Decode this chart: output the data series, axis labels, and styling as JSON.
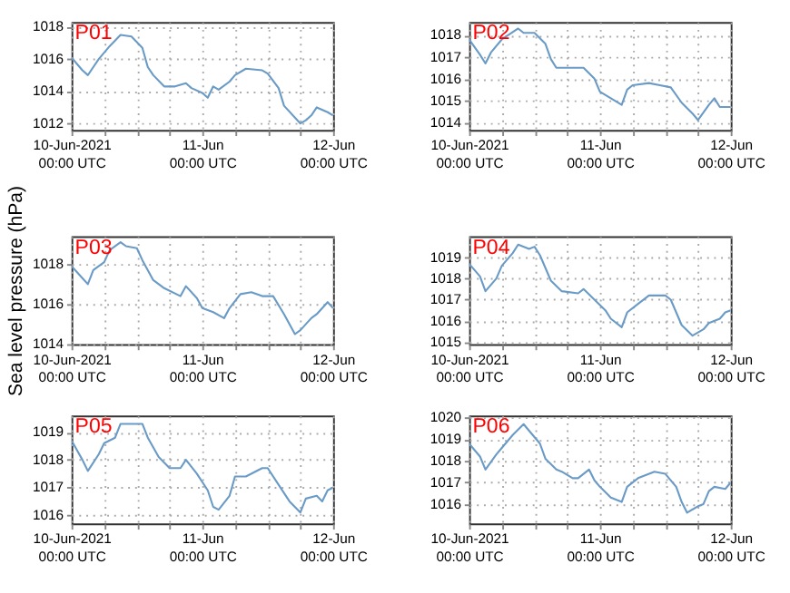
{
  "chart_data": [
    {
      "type": "line",
      "annotations": [
        "P01"
      ],
      "color": "#6a9bc7",
      "grid": true,
      "xlim": [
        "2021-06-10T00:00",
        "2021-06-12T00:00"
      ],
      "ylim": [
        1011.6,
        1018.3
      ],
      "yticks": [
        1012,
        1014,
        1016,
        1018
      ],
      "xticks": [
        {
          "value": "2021-06-10T00:00",
          "label": "10-Jun-2021\n00:00 UTC"
        },
        {
          "value": "2021-06-10T06:00",
          "label": null
        },
        {
          "value": "2021-06-10T12:00",
          "label": null
        },
        {
          "value": "2021-06-10T18:00",
          "label": null
        },
        {
          "value": "2021-06-11T00:00",
          "label": "11-Jun\n00:00 UTC"
        },
        {
          "value": "2021-06-11T06:00",
          "label": null
        },
        {
          "value": "2021-06-11T12:00",
          "label": null
        },
        {
          "value": "2021-06-11T18:00",
          "label": null
        },
        {
          "value": "2021-06-12T00:00",
          "label": "12-Jun\n00:00 UTC"
        }
      ],
      "x": [
        "2021-06-10T00:00",
        "2021-06-10T01:00",
        "2021-06-10T02:00",
        "2021-06-10T03:00",
        "2021-06-10T04:00",
        "2021-06-10T05:00",
        "2021-06-10T07:00",
        "2021-06-10T09:00",
        "2021-06-10T11:00",
        "2021-06-10T13:00",
        "2021-06-10T14:00",
        "2021-06-10T15:00",
        "2021-06-10T17:00",
        "2021-06-10T19:00",
        "2021-06-10T21:00",
        "2021-06-10T22:00",
        "2021-06-11T00:00",
        "2021-06-11T01:00",
        "2021-06-11T02:00",
        "2021-06-11T03:00",
        "2021-06-11T05:00",
        "2021-06-11T06:00",
        "2021-06-11T08:00",
        "2021-06-11T11:00",
        "2021-06-11T12:00",
        "2021-06-11T14:00",
        "2021-06-11T15:00",
        "2021-06-11T18:00",
        "2021-06-11T19:00",
        "2021-06-11T20:00",
        "2021-06-11T21:00",
        "2021-06-11T23:00",
        "2021-06-12T00:00"
      ],
      "values": [
        1016.1,
        1015.7,
        1015.3,
        1015.0,
        1015.5,
        1016.0,
        1016.8,
        1017.5,
        1017.4,
        1016.7,
        1015.5,
        1015.0,
        1014.3,
        1014.3,
        1014.5,
        1014.2,
        1013.9,
        1013.6,
        1014.3,
        1014.1,
        1014.6,
        1015.0,
        1015.4,
        1015.3,
        1015.1,
        1014.2,
        1013.1,
        1012.0,
        1012.2,
        1012.5,
        1013.0,
        1012.7,
        1012.5
      ]
    },
    {
      "type": "line",
      "annotations": [
        "P02"
      ],
      "color": "#6a9bc7",
      "grid": true,
      "xlim": [
        "2021-06-10T00:00",
        "2021-06-12T00:00"
      ],
      "ylim": [
        1013.65,
        1018.6
      ],
      "yticks": [
        1014,
        1015,
        1016,
        1017,
        1018
      ],
      "xticks": [
        {
          "value": "2021-06-10T00:00",
          "label": "10-Jun-2021\n00:00 UTC"
        },
        {
          "value": "2021-06-10T06:00",
          "label": null
        },
        {
          "value": "2021-06-10T12:00",
          "label": null
        },
        {
          "value": "2021-06-10T18:00",
          "label": null
        },
        {
          "value": "2021-06-11T00:00",
          "label": "11-Jun\n00:00 UTC"
        },
        {
          "value": "2021-06-11T06:00",
          "label": null
        },
        {
          "value": "2021-06-11T12:00",
          "label": null
        },
        {
          "value": "2021-06-11T18:00",
          "label": null
        },
        {
          "value": "2021-06-12T00:00",
          "label": "12-Jun\n00:00 UTC"
        }
      ],
      "x": [
        "2021-06-10T00:00",
        "2021-06-10T02:00",
        "2021-06-10T03:00",
        "2021-06-10T04:00",
        "2021-06-10T06:00",
        "2021-06-10T09:00",
        "2021-06-10T10:00",
        "2021-06-10T12:00",
        "2021-06-10T14:00",
        "2021-06-10T15:00",
        "2021-06-10T16:00",
        "2021-06-10T20:00",
        "2021-06-10T21:00",
        "2021-06-10T23:00",
        "2021-06-11T00:00",
        "2021-06-11T02:00",
        "2021-06-11T04:00",
        "2021-06-11T05:00",
        "2021-06-11T06:00",
        "2021-06-11T09:00",
        "2021-06-11T11:00",
        "2021-06-11T13:00",
        "2021-06-11T15:00",
        "2021-06-11T17:00",
        "2021-06-11T18:00",
        "2021-06-11T20:00",
        "2021-06-11T21:00",
        "2021-06-11T22:00",
        "2021-06-12T00:00"
      ],
      "values": [
        1017.8,
        1017.1,
        1016.7,
        1017.2,
        1017.8,
        1018.3,
        1018.1,
        1018.1,
        1017.6,
        1016.9,
        1016.5,
        1016.5,
        1016.5,
        1016.0,
        1015.4,
        1015.1,
        1014.8,
        1015.5,
        1015.7,
        1015.8,
        1015.7,
        1015.6,
        1014.9,
        1014.4,
        1014.1,
        1014.8,
        1015.1,
        1014.7,
        1014.7
      ]
    },
    {
      "type": "line",
      "annotations": [
        "P03"
      ],
      "ylabel": "Sea level pressure (hPa)",
      "color": "#6a9bc7",
      "grid": true,
      "xlim": [
        "2021-06-10T00:00",
        "2021-06-12T00:00"
      ],
      "ylim": [
        1014,
        1019.4
      ],
      "yticks": [
        1014,
        1016,
        1018
      ],
      "xticks": [
        {
          "value": "2021-06-10T00:00",
          "label": "10-Jun-2021\n00:00 UTC"
        },
        {
          "value": "2021-06-10T06:00",
          "label": null
        },
        {
          "value": "2021-06-10T12:00",
          "label": null
        },
        {
          "value": "2021-06-10T18:00",
          "label": null
        },
        {
          "value": "2021-06-11T00:00",
          "label": "11-Jun\n00:00 UTC"
        },
        {
          "value": "2021-06-11T06:00",
          "label": null
        },
        {
          "value": "2021-06-11T12:00",
          "label": null
        },
        {
          "value": "2021-06-11T18:00",
          "label": null
        },
        {
          "value": "2021-06-12T00:00",
          "label": "12-Jun\n00:00 UTC"
        }
      ],
      "x": [
        "2021-06-10T00:00",
        "2021-06-10T02:00",
        "2021-06-10T03:00",
        "2021-06-10T04:00",
        "2021-06-10T06:00",
        "2021-06-10T07:00",
        "2021-06-10T09:00",
        "2021-06-10T10:00",
        "2021-06-10T12:00",
        "2021-06-10T13:00",
        "2021-06-10T15:00",
        "2021-06-10T17:00",
        "2021-06-10T20:00",
        "2021-06-10T21:00",
        "2021-06-10T23:00",
        "2021-06-11T00:00",
        "2021-06-11T02:00",
        "2021-06-11T04:00",
        "2021-06-11T05:00",
        "2021-06-11T07:00",
        "2021-06-11T09:00",
        "2021-06-11T11:00",
        "2021-06-11T13:00",
        "2021-06-11T15:00",
        "2021-06-11T17:00",
        "2021-06-11T18:00",
        "2021-06-11T20:00",
        "2021-06-11T21:00",
        "2021-06-11T23:00",
        "2021-06-12T00:00"
      ],
      "values": [
        1017.9,
        1017.3,
        1017.0,
        1017.7,
        1018.1,
        1018.7,
        1019.1,
        1018.9,
        1018.8,
        1018.2,
        1017.2,
        1016.8,
        1016.4,
        1016.9,
        1016.3,
        1015.8,
        1015.6,
        1015.3,
        1015.8,
        1016.5,
        1016.6,
        1016.4,
        1016.4,
        1015.5,
        1014.5,
        1014.7,
        1015.3,
        1015.5,
        1016.1,
        1015.8
      ]
    },
    {
      "type": "line",
      "annotations": [
        "P04"
      ],
      "color": "#6a9bc7",
      "grid": true,
      "xlim": [
        "2021-06-10T00:00",
        "2021-06-12T00:00"
      ],
      "ylim": [
        1014.9,
        1020
      ],
      "yticks": [
        1015,
        1016,
        1017,
        1018,
        1019
      ],
      "xticks": [
        {
          "value": "2021-06-10T00:00",
          "label": "10-Jun-2021\n00:00 UTC"
        },
        {
          "value": "2021-06-10T06:00",
          "label": null
        },
        {
          "value": "2021-06-10T12:00",
          "label": null
        },
        {
          "value": "2021-06-10T18:00",
          "label": null
        },
        {
          "value": "2021-06-11T00:00",
          "label": "11-Jun\n00:00 UTC"
        },
        {
          "value": "2021-06-11T06:00",
          "label": null
        },
        {
          "value": "2021-06-11T12:00",
          "label": null
        },
        {
          "value": "2021-06-11T18:00",
          "label": null
        },
        {
          "value": "2021-06-12T00:00",
          "label": "12-Jun\n00:00 UTC"
        }
      ],
      "x": [
        "2021-06-10T00:00",
        "2021-06-10T02:00",
        "2021-06-10T03:00",
        "2021-06-10T05:00",
        "2021-06-10T06:00",
        "2021-06-10T08:00",
        "2021-06-10T09:00",
        "2021-06-10T11:00",
        "2021-06-10T12:00",
        "2021-06-10T13:00",
        "2021-06-10T15:00",
        "2021-06-10T17:00",
        "2021-06-10T20:00",
        "2021-06-10T21:00",
        "2021-06-10T23:00",
        "2021-06-11T01:00",
        "2021-06-11T02:00",
        "2021-06-11T04:00",
        "2021-06-11T05:00",
        "2021-06-11T07:00",
        "2021-06-11T09:00",
        "2021-06-11T12:00",
        "2021-06-11T13:00",
        "2021-06-11T15:00",
        "2021-06-11T17:00",
        "2021-06-11T19:00",
        "2021-06-11T20:00",
        "2021-06-11T22:00",
        "2021-06-11T23:00",
        "2021-06-12T00:00"
      ],
      "values": [
        1018.7,
        1018.1,
        1017.4,
        1018.0,
        1018.6,
        1019.2,
        1019.6,
        1019.4,
        1019.5,
        1019.1,
        1017.9,
        1017.4,
        1017.3,
        1017.5,
        1017.0,
        1016.5,
        1016.1,
        1015.7,
        1016.4,
        1016.8,
        1017.2,
        1017.2,
        1017.0,
        1015.8,
        1015.3,
        1015.6,
        1015.9,
        1016.1,
        1016.4,
        1016.5
      ]
    },
    {
      "type": "line",
      "annotations": [
        "P05"
      ],
      "color": "#6a9bc7",
      "grid": true,
      "xlim": [
        "2021-06-10T00:00",
        "2021-06-12T00:00"
      ],
      "ylim": [
        1015.7,
        1019.6
      ],
      "yticks": [
        1016,
        1017,
        1018,
        1019
      ],
      "xticks": [
        {
          "value": "2021-06-10T00:00",
          "label": "10-Jun-2021\n00:00 UTC"
        },
        {
          "value": "2021-06-10T06:00",
          "label": null
        },
        {
          "value": "2021-06-10T12:00",
          "label": null
        },
        {
          "value": "2021-06-10T18:00",
          "label": null
        },
        {
          "value": "2021-06-11T00:00",
          "label": "11-Jun\n00:00 UTC"
        },
        {
          "value": "2021-06-11T06:00",
          "label": null
        },
        {
          "value": "2021-06-11T12:00",
          "label": null
        },
        {
          "value": "2021-06-11T18:00",
          "label": null
        },
        {
          "value": "2021-06-12T00:00",
          "label": "12-Jun\n00:00 UTC"
        }
      ],
      "x": [
        "2021-06-10T00:00",
        "2021-06-10T02:00",
        "2021-06-10T03:00",
        "2021-06-10T05:00",
        "2021-06-10T06:00",
        "2021-06-10T08:00",
        "2021-06-10T09:00",
        "2021-06-10T11:00",
        "2021-06-10T13:00",
        "2021-06-10T14:00",
        "2021-06-10T16:00",
        "2021-06-10T18:00",
        "2021-06-10T20:00",
        "2021-06-10T21:00",
        "2021-06-10T23:00",
        "2021-06-11T01:00",
        "2021-06-11T02:00",
        "2021-06-11T03:00",
        "2021-06-11T05:00",
        "2021-06-11T06:00",
        "2021-06-11T08:00",
        "2021-06-11T11:00",
        "2021-06-11T12:00",
        "2021-06-11T14:00",
        "2021-06-11T16:00",
        "2021-06-11T18:00",
        "2021-06-11T19:00",
        "2021-06-11T21:00",
        "2021-06-11T22:00",
        "2021-06-11T23:00",
        "2021-06-12T00:00"
      ],
      "values": [
        1018.7,
        1018.0,
        1017.6,
        1018.2,
        1018.6,
        1018.8,
        1019.3,
        1019.3,
        1019.3,
        1018.8,
        1018.1,
        1017.7,
        1017.7,
        1018.0,
        1017.5,
        1016.9,
        1016.3,
        1016.2,
        1016.7,
        1017.4,
        1017.4,
        1017.7,
        1017.7,
        1017.1,
        1016.5,
        1016.1,
        1016.6,
        1016.7,
        1016.5,
        1016.9,
        1017.0
      ]
    },
    {
      "type": "line",
      "annotations": [
        "P06"
      ],
      "color": "#6a9bc7",
      "grid": true,
      "xlim": [
        "2021-06-10T00:00",
        "2021-06-12T00:00"
      ],
      "ylim": [
        1015.1,
        1020.1
      ],
      "yticks": [
        1016,
        1017,
        1018,
        1019,
        1020
      ],
      "xticks": [
        {
          "value": "2021-06-10T00:00",
          "label": "10-Jun-2021\n00:00 UTC"
        },
        {
          "value": "2021-06-10T06:00",
          "label": null
        },
        {
          "value": "2021-06-10T12:00",
          "label": null
        },
        {
          "value": "2021-06-10T18:00",
          "label": null
        },
        {
          "value": "2021-06-11T00:00",
          "label": "11-Jun\n00:00 UTC"
        },
        {
          "value": "2021-06-11T06:00",
          "label": null
        },
        {
          "value": "2021-06-11T12:00",
          "label": null
        },
        {
          "value": "2021-06-11T18:00",
          "label": null
        },
        {
          "value": "2021-06-12T00:00",
          "label": "12-Jun\n00:00 UTC"
        }
      ],
      "x": [
        "2021-06-10T00:00",
        "2021-06-10T02:00",
        "2021-06-10T03:00",
        "2021-06-10T05:00",
        "2021-06-10T06:00",
        "2021-06-10T08:00",
        "2021-06-10T10:00",
        "2021-06-10T11:00",
        "2021-06-10T13:00",
        "2021-06-10T14:00",
        "2021-06-10T16:00",
        "2021-06-10T17:00",
        "2021-06-10T19:00",
        "2021-06-10T20:00",
        "2021-06-10T22:00",
        "2021-06-10T23:00",
        "2021-06-11T00:00",
        "2021-06-11T02:00",
        "2021-06-11T04:00",
        "2021-06-11T05:00",
        "2021-06-11T07:00",
        "2021-06-11T10:00",
        "2021-06-11T12:00",
        "2021-06-11T14:00",
        "2021-06-11T15:00",
        "2021-06-11T16:00",
        "2021-06-11T18:00",
        "2021-06-11T19:00",
        "2021-06-11T20:00",
        "2021-06-11T21:00",
        "2021-06-11T23:00",
        "2021-06-12T00:00"
      ],
      "values": [
        1018.8,
        1018.2,
        1017.6,
        1018.3,
        1018.6,
        1019.2,
        1019.7,
        1019.4,
        1018.8,
        1018.1,
        1017.6,
        1017.5,
        1017.2,
        1017.2,
        1017.6,
        1017.1,
        1016.8,
        1016.3,
        1016.1,
        1016.8,
        1017.2,
        1017.5,
        1017.4,
        1016.8,
        1016.1,
        1015.6,
        1015.9,
        1016.0,
        1016.6,
        1016.8,
        1016.7,
        1017.0
      ]
    }
  ]
}
